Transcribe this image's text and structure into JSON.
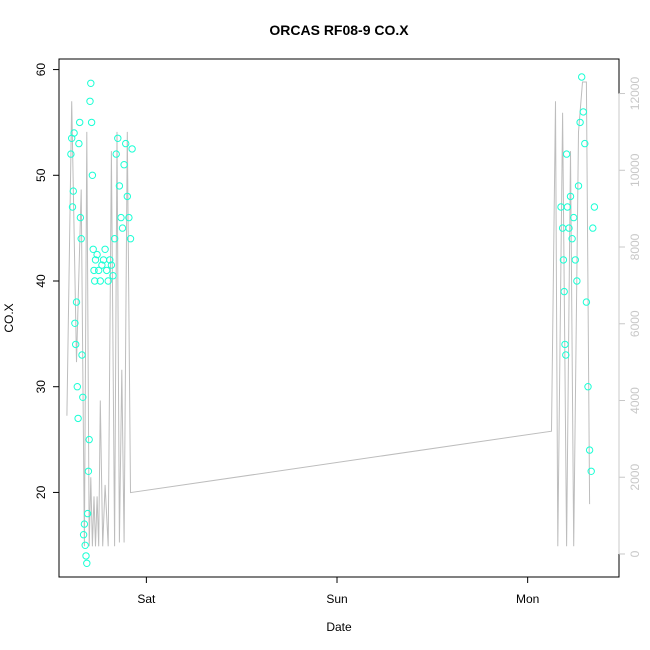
{
  "chart_data": {
    "type": "scatter",
    "title": "ORCAS RF08-9 CO.X",
    "xlabel": "Date",
    "ylabel": "CO.X",
    "x_ticks": [
      "Sat",
      "Sun",
      "Mon"
    ],
    "x_tick_hours": [
      24,
      48,
      72
    ],
    "xlim_hours": [
      13,
      83.5
    ],
    "ylim": [
      12,
      61
    ],
    "y_ticks": [
      20,
      30,
      40,
      50,
      60
    ],
    "y2lim": [
      -600,
      12900
    ],
    "y2_ticks": [
      0,
      2000,
      4000,
      6000,
      8000,
      10000,
      12000
    ],
    "point_color": "#1affd5",
    "line_color": "#bdbdbd",
    "series": [
      {
        "name": "",
        "kind": "points",
        "points": [
          [
            14.5,
            52
          ],
          [
            14.6,
            53.5
          ],
          [
            14.7,
            47
          ],
          [
            14.8,
            48.5
          ],
          [
            14.9,
            54
          ],
          [
            15.0,
            36
          ],
          [
            15.1,
            34
          ],
          [
            15.2,
            38
          ],
          [
            15.3,
            30
          ],
          [
            15.4,
            27
          ],
          [
            15.5,
            53
          ],
          [
            15.6,
            55
          ],
          [
            15.7,
            46
          ],
          [
            15.8,
            44
          ],
          [
            15.9,
            33
          ],
          [
            16.0,
            29
          ],
          [
            16.1,
            16
          ],
          [
            16.2,
            17
          ],
          [
            16.3,
            15
          ],
          [
            16.4,
            14
          ],
          [
            16.5,
            13.3
          ],
          [
            16.6,
            18
          ],
          [
            16.7,
            22
          ],
          [
            16.8,
            25
          ],
          [
            16.9,
            57
          ],
          [
            17.0,
            58.7
          ],
          [
            17.1,
            55
          ],
          [
            17.2,
            50
          ],
          [
            17.3,
            43
          ],
          [
            17.4,
            41
          ],
          [
            17.5,
            40
          ],
          [
            17.6,
            42
          ],
          [
            17.8,
            42.5
          ],
          [
            18.0,
            41
          ],
          [
            18.2,
            40
          ],
          [
            18.4,
            41.5
          ],
          [
            18.6,
            42
          ],
          [
            18.8,
            43
          ],
          [
            19.0,
            41
          ],
          [
            19.2,
            40
          ],
          [
            19.4,
            42
          ],
          [
            19.6,
            41.5
          ],
          [
            19.8,
            40.5
          ],
          [
            20.0,
            44
          ],
          [
            20.2,
            52
          ],
          [
            20.4,
            53.5
          ],
          [
            20.6,
            49
          ],
          [
            20.8,
            46
          ],
          [
            21.0,
            45
          ],
          [
            21.2,
            51
          ],
          [
            21.4,
            53
          ],
          [
            21.6,
            48
          ],
          [
            21.8,
            46
          ],
          [
            22.0,
            44
          ],
          [
            22.2,
            52.5
          ],
          [
            76.2,
            47
          ],
          [
            76.4,
            45
          ],
          [
            76.5,
            42
          ],
          [
            76.6,
            39
          ],
          [
            76.7,
            34
          ],
          [
            76.8,
            33
          ],
          [
            76.9,
            52
          ],
          [
            77.0,
            47
          ],
          [
            77.2,
            45
          ],
          [
            77.4,
            48
          ],
          [
            77.6,
            44
          ],
          [
            77.8,
            46
          ],
          [
            78.0,
            42
          ],
          [
            78.2,
            40
          ],
          [
            78.4,
            49
          ],
          [
            78.6,
            55
          ],
          [
            78.8,
            59.3
          ],
          [
            79.0,
            56
          ],
          [
            79.2,
            53
          ],
          [
            79.4,
            38
          ],
          [
            79.6,
            30
          ],
          [
            79.8,
            24
          ],
          [
            80.0,
            22
          ],
          [
            80.2,
            45
          ],
          [
            80.4,
            47
          ]
        ]
      },
      {
        "name": "",
        "kind": "line",
        "axis": "y2",
        "points": [
          [
            14.0,
            3600
          ],
          [
            14.6,
            11800
          ],
          [
            15.2,
            5000
          ],
          [
            15.8,
            9500
          ],
          [
            16.2,
            200
          ],
          [
            16.5,
            11000
          ],
          [
            16.8,
            200
          ],
          [
            17.0,
            2000
          ],
          [
            17.2,
            200
          ],
          [
            17.4,
            1500
          ],
          [
            17.6,
            200
          ],
          [
            17.8,
            1500
          ],
          [
            18.0,
            200
          ],
          [
            18.2,
            4000
          ],
          [
            18.5,
            200
          ],
          [
            18.8,
            1800
          ],
          [
            19.2,
            200
          ],
          [
            19.6,
            10500
          ],
          [
            20.0,
            200
          ],
          [
            20.3,
            11000
          ],
          [
            20.6,
            300
          ],
          [
            20.9,
            4800
          ],
          [
            21.2,
            300
          ],
          [
            21.6,
            11000
          ],
          [
            22.0,
            1600
          ],
          [
            75.0,
            3200
          ],
          [
            75.5,
            11800
          ],
          [
            75.8,
            200
          ],
          [
            76.4,
            11500
          ],
          [
            76.9,
            200
          ],
          [
            77.4,
            10500
          ],
          [
            77.8,
            200
          ],
          [
            78.4,
            11000
          ],
          [
            78.9,
            12300
          ],
          [
            79.4,
            12300
          ],
          [
            79.8,
            1300
          ]
        ]
      }
    ]
  }
}
